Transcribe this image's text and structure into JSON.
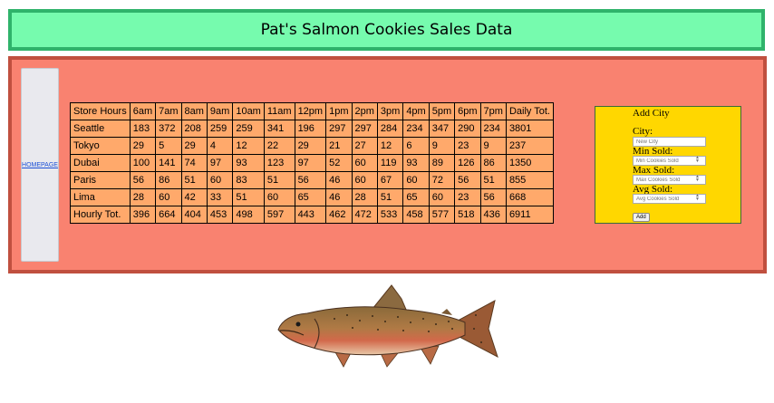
{
  "header": {
    "title": "Pat's Salmon Cookies Sales Data"
  },
  "sidebar": {
    "homepage_label": "HOMEPAGE"
  },
  "table": {
    "headers": [
      "Store Hours",
      "6am",
      "7am",
      "8am",
      "9am",
      "10am",
      "11am",
      "12pm",
      "1pm",
      "2pm",
      "3pm",
      "4pm",
      "5pm",
      "6pm",
      "7pm",
      "Daily Tot."
    ],
    "rows": [
      [
        "Seattle",
        "183",
        "372",
        "208",
        "259",
        "259",
        "341",
        "196",
        "297",
        "297",
        "284",
        "234",
        "347",
        "290",
        "234",
        "3801"
      ],
      [
        "Tokyo",
        "29",
        "5",
        "29",
        "4",
        "12",
        "22",
        "29",
        "21",
        "27",
        "12",
        "6",
        "9",
        "23",
        "9",
        "237"
      ],
      [
        "Dubai",
        "100",
        "141",
        "74",
        "97",
        "93",
        "123",
        "97",
        "52",
        "60",
        "119",
        "93",
        "89",
        "126",
        "86",
        "1350"
      ],
      [
        "Paris",
        "56",
        "86",
        "51",
        "60",
        "83",
        "51",
        "56",
        "46",
        "60",
        "67",
        "60",
        "72",
        "56",
        "51",
        "855"
      ],
      [
        "Lima",
        "28",
        "60",
        "42",
        "33",
        "51",
        "60",
        "65",
        "46",
        "28",
        "51",
        "65",
        "60",
        "23",
        "56",
        "668"
      ]
    ],
    "footer": [
      "Hourly Tot.",
      "396",
      "664",
      "404",
      "453",
      "498",
      "597",
      "443",
      "462",
      "472",
      "533",
      "458",
      "577",
      "518",
      "436",
      "6911"
    ]
  },
  "form": {
    "legend": "Add City",
    "city_label": "City:",
    "city_placeholder": "New City",
    "min_label": "Min Sold:",
    "min_placeholder": "Min Cookies Sold",
    "max_label": "Max Sold:",
    "max_placeholder": "Max Cookies Sold",
    "avg_label": "Avg Sold:",
    "avg_placeholder": "Avg Cookies Sold",
    "submit_label": "Add"
  },
  "colors": {
    "header_bg": "#76fbae",
    "main_bg": "#f98270",
    "table_bg": "#ffa96b",
    "form_bg": "#ffd700"
  },
  "image": {
    "icon": "salmon-illustration"
  }
}
